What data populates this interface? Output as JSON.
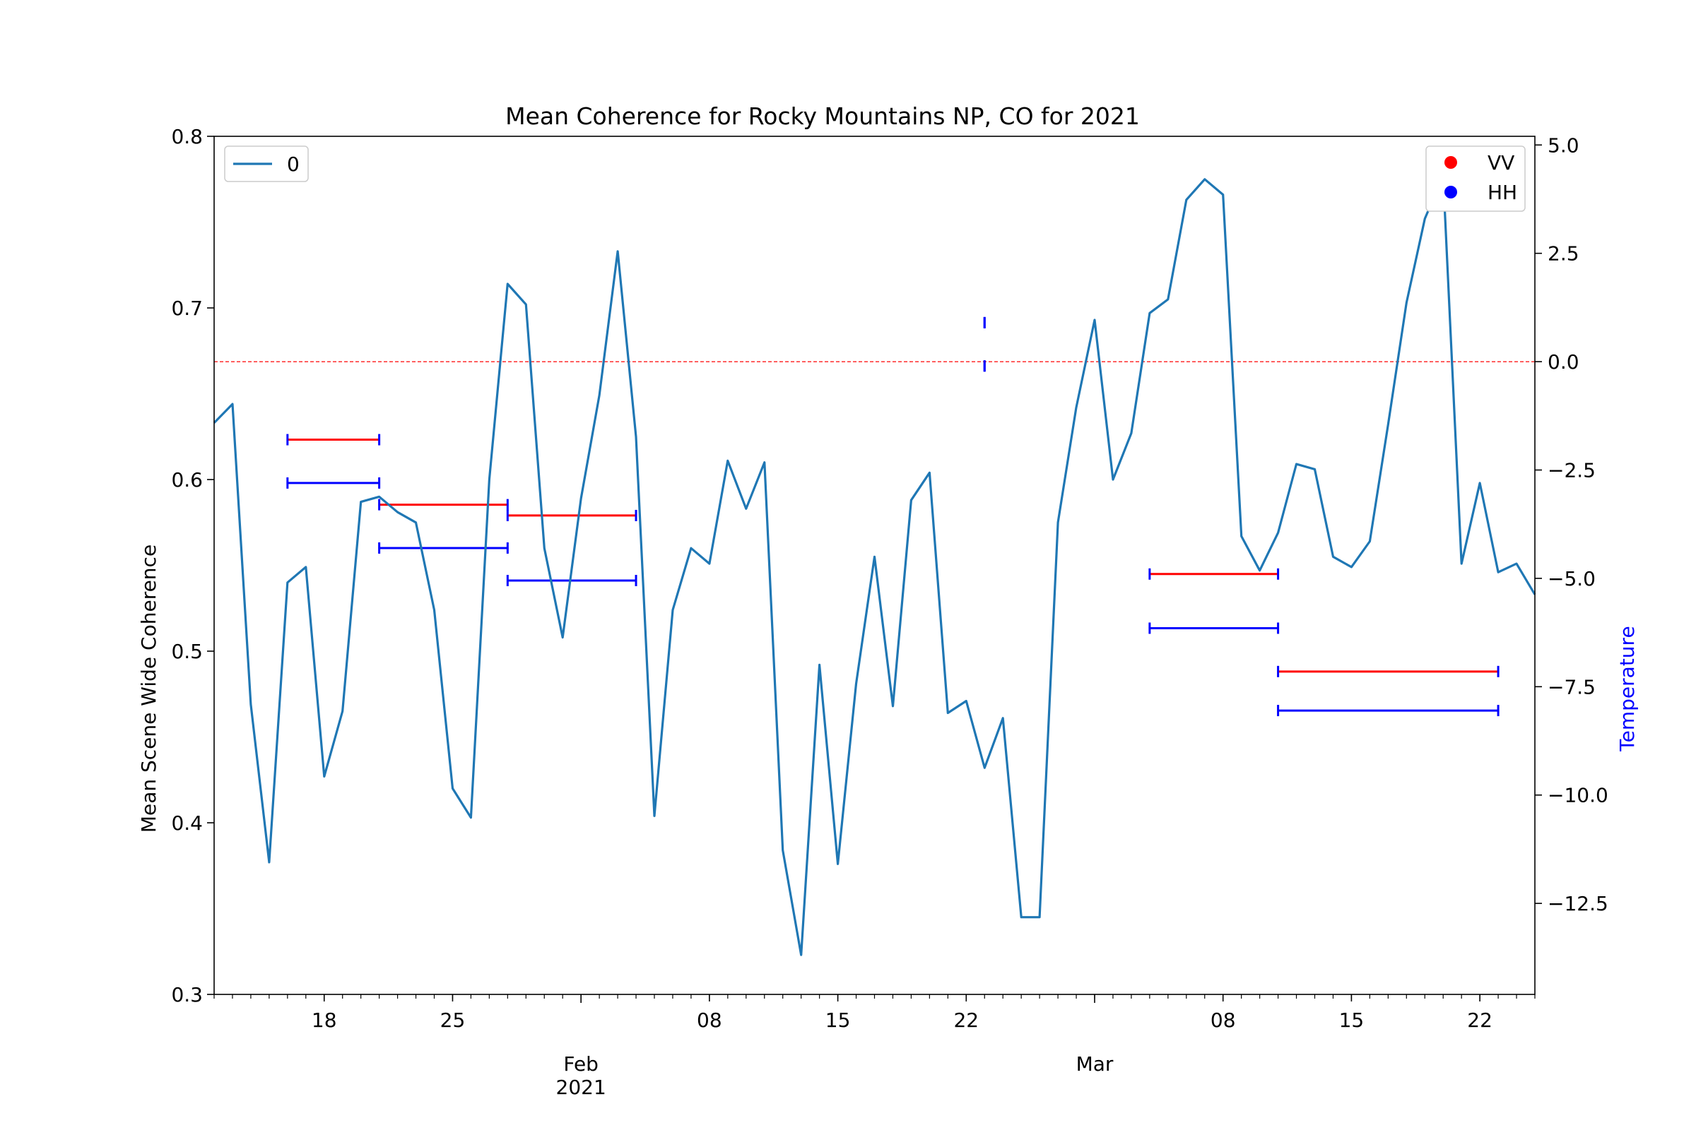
{
  "chart_data": {
    "type": "line",
    "title": "Mean Coherence for Rocky Mountains NP, CO for 2021",
    "ylabel_left": "Mean Scene Wide Coherence",
    "ylabel_right": "Temperature",
    "ylim_left": [
      0.3,
      0.8
    ],
    "ylim_right": [
      -14.6,
      5.2
    ],
    "xlim": [
      "2021-01-12",
      "2021-03-25"
    ],
    "y_ticks_left": [
      "0.3",
      "0.4",
      "0.5",
      "0.6",
      "0.7",
      "0.8"
    ],
    "y_ticks_right": [
      "5.0",
      "2.5",
      "0.0",
      "−2.5",
      "−5.0",
      "−7.5",
      "−10.0",
      "−12.5"
    ],
    "y_ticks_right_values": [
      5,
      2.5,
      0,
      -2.5,
      -5,
      -7.5,
      -10,
      -12.5
    ],
    "x_major_ticks": [
      {
        "date": "2021-02-01",
        "label": "Feb",
        "sublabel": "2021"
      },
      {
        "date": "2021-03-01",
        "label": "Mar",
        "sublabel": ""
      }
    ],
    "x_minor_labeled_ticks": [
      {
        "date": "2021-01-18",
        "label": "18"
      },
      {
        "date": "2021-01-25",
        "label": "25"
      },
      {
        "date": "2021-02-08",
        "label": "08"
      },
      {
        "date": "2021-02-15",
        "label": "15"
      },
      {
        "date": "2021-02-22",
        "label": "22"
      },
      {
        "date": "2021-03-08",
        "label": "08"
      },
      {
        "date": "2021-03-15",
        "label": "15"
      },
      {
        "date": "2021-03-22",
        "label": "22"
      }
    ],
    "legend_left": {
      "placement": "upper-left",
      "entries": [
        {
          "label": "0",
          "color": "#1f77b4"
        }
      ]
    },
    "legend_right": {
      "placement": "upper-right",
      "entries": [
        {
          "label": "VV",
          "color": "#ff0000"
        },
        {
          "label": "HH",
          "color": "#0000ff"
        }
      ]
    },
    "series": [
      {
        "name": "0",
        "color": "#1f77b4",
        "axis": "left",
        "x": [
          "2021-01-12",
          "2021-01-13",
          "2021-01-14",
          "2021-01-15",
          "2021-01-16",
          "2021-01-17",
          "2021-01-18",
          "2021-01-19",
          "2021-01-20",
          "2021-01-21",
          "2021-01-22",
          "2021-01-23",
          "2021-01-24",
          "2021-01-25",
          "2021-01-26",
          "2021-01-27",
          "2021-01-28",
          "2021-01-29",
          "2021-01-30",
          "2021-01-31",
          "2021-02-01",
          "2021-02-02",
          "2021-02-03",
          "2021-02-04",
          "2021-02-05",
          "2021-02-06",
          "2021-02-07",
          "2021-02-08",
          "2021-02-09",
          "2021-02-10",
          "2021-02-11",
          "2021-02-12",
          "2021-02-13",
          "2021-02-14",
          "2021-02-15",
          "2021-02-16",
          "2021-02-17",
          "2021-02-18",
          "2021-02-19",
          "2021-02-20",
          "2021-02-21",
          "2021-02-22",
          "2021-02-23",
          "2021-02-24",
          "2021-02-25",
          "2021-02-26",
          "2021-02-27",
          "2021-02-28",
          "2021-03-01",
          "2021-03-02",
          "2021-03-03",
          "2021-03-04",
          "2021-03-05",
          "2021-03-06",
          "2021-03-07",
          "2021-03-08",
          "2021-03-09",
          "2021-03-10",
          "2021-03-11",
          "2021-03-12",
          "2021-03-13",
          "2021-03-14",
          "2021-03-15",
          "2021-03-16",
          "2021-03-17",
          "2021-03-18",
          "2021-03-19",
          "2021-03-20",
          "2021-03-21",
          "2021-03-22",
          "2021-03-23",
          "2021-03-24",
          "2021-03-25"
        ],
        "values": [
          0.633,
          0.644,
          0.469,
          0.377,
          0.54,
          0.549,
          0.427,
          0.465,
          0.587,
          0.59,
          0.581,
          0.575,
          0.524,
          0.42,
          0.403,
          0.6,
          0.714,
          0.702,
          0.56,
          0.508,
          0.589,
          0.649,
          0.733,
          0.625,
          0.404,
          0.524,
          0.56,
          0.551,
          0.611,
          0.583,
          0.61,
          0.384,
          0.323,
          0.492,
          0.376,
          0.481,
          0.555,
          0.468,
          0.588,
          0.604,
          0.464,
          0.471,
          0.432,
          0.461,
          0.345,
          0.345,
          0.575,
          0.642,
          0.693,
          0.6,
          0.627,
          0.697,
          0.705,
          0.763,
          0.775,
          0.766,
          0.567,
          0.547,
          0.569,
          0.609,
          0.606,
          0.555,
          0.549,
          0.564,
          0.632,
          0.703,
          0.752,
          0.777,
          0.551,
          0.598,
          0.546,
          0.551,
          0.533
        ]
      }
    ],
    "reference_line": {
      "axis": "right",
      "value": 0.0,
      "color": "#ff0000",
      "style": "dashed"
    },
    "temperature_ranges": [
      {
        "pol": "VV",
        "color": "#ff0000",
        "start": "2021-01-16",
        "end": "2021-01-21",
        "value": -1.8
      },
      {
        "pol": "HH",
        "color": "#0000ff",
        "start": "2021-01-16",
        "end": "2021-01-21",
        "value": -2.8
      },
      {
        "pol": "VV",
        "color": "#ff0000",
        "start": "2021-01-21",
        "end": "2021-01-28",
        "value": -3.3
      },
      {
        "pol": "HH",
        "color": "#0000ff",
        "start": "2021-01-21",
        "end": "2021-01-28",
        "value": -4.3
      },
      {
        "pol": "VV",
        "color": "#ff0000",
        "start": "2021-01-28",
        "end": "2021-02-04",
        "value": -3.55
      },
      {
        "pol": "HH",
        "color": "#0000ff",
        "start": "2021-01-28",
        "end": "2021-02-04",
        "value": -5.05
      },
      {
        "pol": "VV",
        "color": "#ff0000",
        "start": "2021-02-23",
        "end": "2021-02-23",
        "value": 0.9
      },
      {
        "pol": "HH",
        "color": "#0000ff",
        "start": "2021-02-23",
        "end": "2021-02-23",
        "value": -0.1
      },
      {
        "pol": "VV",
        "color": "#ff0000",
        "start": "2021-03-04",
        "end": "2021-03-11",
        "value": -4.9
      },
      {
        "pol": "HH",
        "color": "#0000ff",
        "start": "2021-03-04",
        "end": "2021-03-11",
        "value": -6.15
      },
      {
        "pol": "VV",
        "color": "#ff0000",
        "start": "2021-03-11",
        "end": "2021-03-23",
        "value": -7.15
      },
      {
        "pol": "HH",
        "color": "#0000ff",
        "start": "2021-03-11",
        "end": "2021-03-23",
        "value": -8.05
      }
    ]
  }
}
